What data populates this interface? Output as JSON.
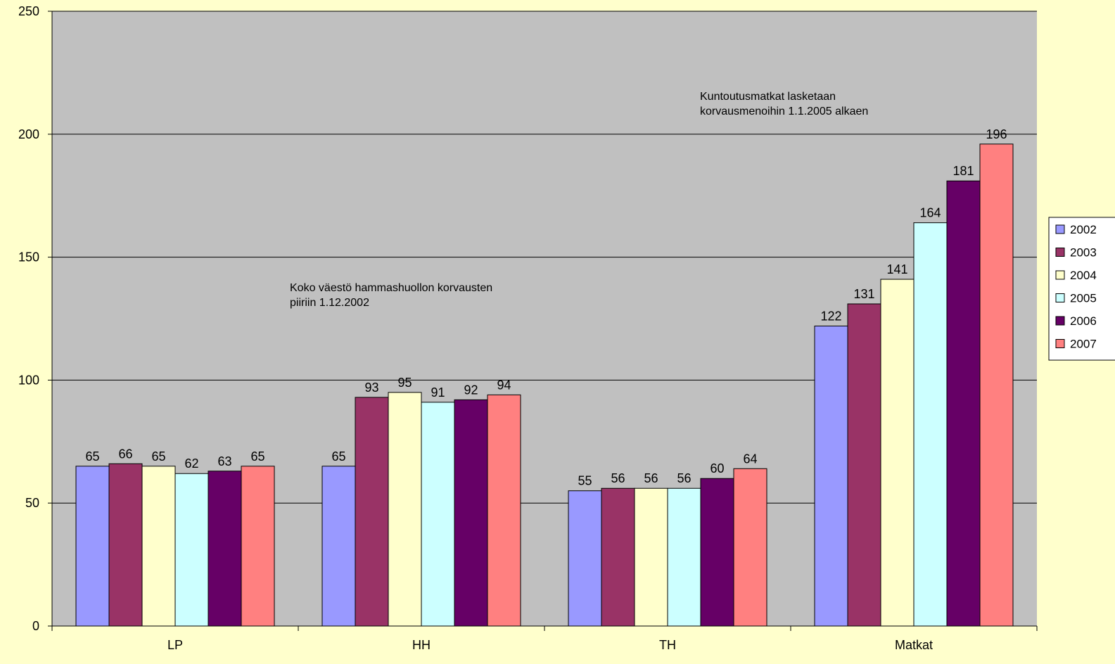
{
  "chart_data": {
    "type": "bar",
    "categories": [
      "LP",
      "HH",
      "TH",
      "Matkat"
    ],
    "series": [
      {
        "name": "2002",
        "color": "#9999ff",
        "values": [
          65,
          65,
          55,
          122
        ]
      },
      {
        "name": "2003",
        "color": "#993366",
        "values": [
          66,
          93,
          56,
          131
        ]
      },
      {
        "name": "2004",
        "color": "#ffffcc",
        "values": [
          65,
          95,
          56,
          141
        ]
      },
      {
        "name": "2005",
        "color": "#ccffff",
        "values": [
          62,
          91,
          56,
          164
        ]
      },
      {
        "name": "2006",
        "color": "#660066",
        "values": [
          63,
          92,
          60,
          181
        ]
      },
      {
        "name": "2007",
        "color": "#ff8080",
        "values": [
          65,
          94,
          64,
          196
        ]
      }
    ],
    "data_labels": [
      [
        "65",
        "65",
        "55",
        "122"
      ],
      [
        "66",
        "93",
        "56",
        "131"
      ],
      [
        "65",
        "95",
        "56",
        "141"
      ],
      [
        "62",
        "91",
        "56",
        "164"
      ],
      [
        "63",
        "92",
        "60",
        "181"
      ],
      [
        "65",
        "94",
        "64",
        "196"
      ]
    ],
    "y_ticks": [
      0,
      50,
      100,
      150,
      200,
      250
    ],
    "ylim": [
      0,
      250
    ],
    "grid": true,
    "legend_position": "right",
    "plot_background": "#c0c0c0",
    "page_background": "#ffffcc",
    "annotations": [
      {
        "lines": [
          "Kuntoutusmatkat lasketaan",
          "korvausmenoihin 1.1.2005 alkaen"
        ]
      },
      {
        "lines": [
          "Koko väestö hammashuollon korvausten",
          "piiriin 1.12.2002"
        ]
      }
    ],
    "title": "",
    "xlabel": "",
    "ylabel": ""
  }
}
